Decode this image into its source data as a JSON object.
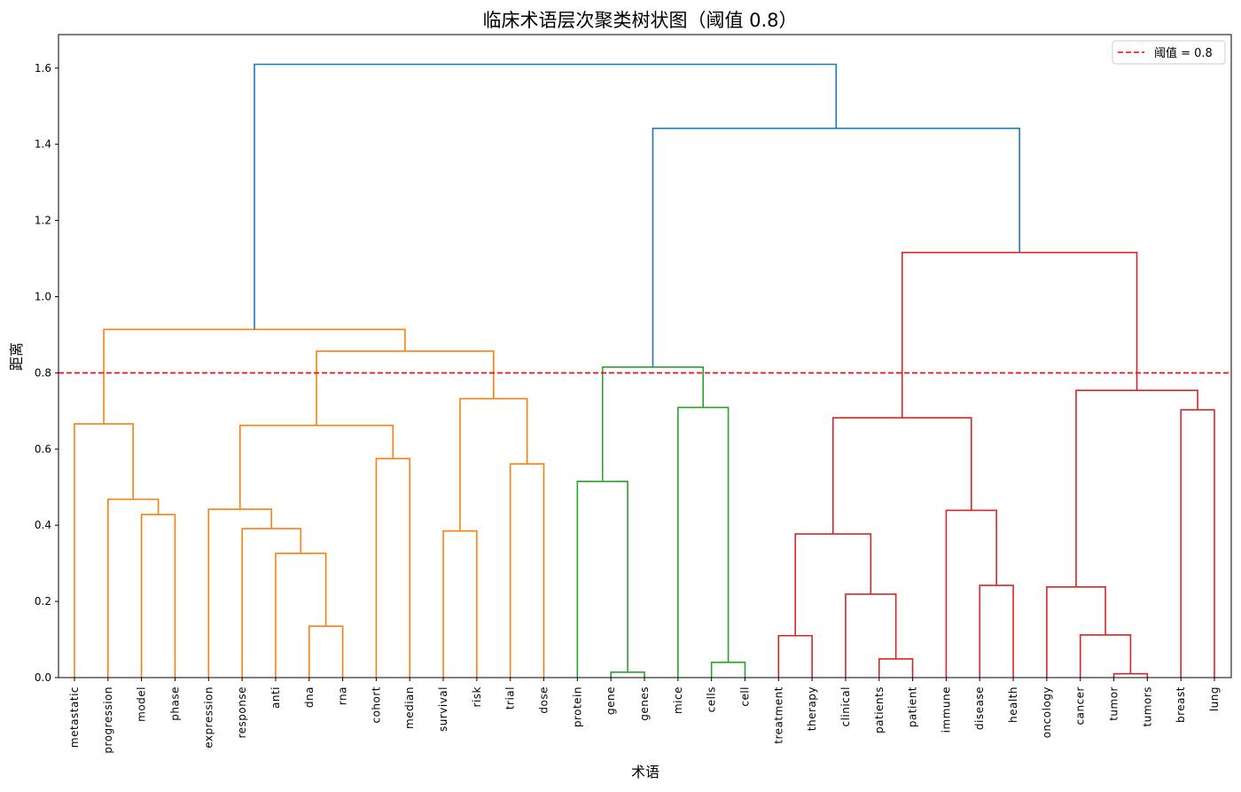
{
  "chart_data": {
    "type": "dendrogram",
    "title": "临床术语层次聚类树状图（阈值 0.8）",
    "xlabel": "术语",
    "ylabel": "距离",
    "ylim": [
      0,
      1.688
    ],
    "yticks": [
      "0.0",
      "0.2",
      "0.4",
      "0.6",
      "0.8",
      "1.0",
      "1.2",
      "1.4",
      "1.6"
    ],
    "threshold": 0.8,
    "legend": {
      "label": "阈值 = 0.8",
      "position": "top-right"
    },
    "colors": {
      "o": "#ff7f0e",
      "g": "#2ca02c",
      "r": "#d62728",
      "b": "#1f77b4",
      "threshold": "#ff0000"
    },
    "leaves": [
      "metastatic",
      "progression",
      "model",
      "phase",
      "expression",
      "response",
      "anti",
      "dna",
      "rna",
      "cohort",
      "median",
      "survival",
      "risk",
      "trial",
      "dose",
      "protein",
      "gene",
      "genes",
      "mice",
      "cells",
      "cell",
      "treatment",
      "therapy",
      "clinical",
      "patients",
      "patient",
      "immune",
      "disease",
      "health",
      "oncology",
      "cancer",
      "tumor",
      "tumors",
      "breast",
      "lung"
    ],
    "merges": [
      [
        2,
        3,
        0.428,
        "o"
      ],
      [
        1,
        35,
        0.468,
        "o"
      ],
      [
        0,
        36,
        0.666,
        "o"
      ],
      [
        7,
        8,
        0.135,
        "o"
      ],
      [
        6,
        38,
        0.326,
        "o"
      ],
      [
        5,
        39,
        0.391,
        "o"
      ],
      [
        4,
        40,
        0.442,
        "o"
      ],
      [
        9,
        10,
        0.575,
        "o"
      ],
      [
        41,
        42,
        0.662,
        "o"
      ],
      [
        11,
        12,
        0.385,
        "o"
      ],
      [
        13,
        14,
        0.561,
        "o"
      ],
      [
        44,
        45,
        0.732,
        "o"
      ],
      [
        43,
        46,
        0.857,
        "o"
      ],
      [
        37,
        47,
        0.914,
        "o"
      ],
      [
        16,
        17,
        0.014,
        "g"
      ],
      [
        15,
        49,
        0.515,
        "g"
      ],
      [
        19,
        20,
        0.04,
        "g"
      ],
      [
        18,
        51,
        0.709,
        "g"
      ],
      [
        50,
        52,
        0.815,
        "g"
      ],
      [
        21,
        22,
        0.11,
        "r"
      ],
      [
        24,
        25,
        0.049,
        "r"
      ],
      [
        23,
        55,
        0.219,
        "r"
      ],
      [
        54,
        56,
        0.377,
        "r"
      ],
      [
        27,
        28,
        0.242,
        "r"
      ],
      [
        26,
        58,
        0.439,
        "r"
      ],
      [
        57,
        59,
        0.682,
        "r"
      ],
      [
        31,
        32,
        0.01,
        "r"
      ],
      [
        30,
        61,
        0.112,
        "r"
      ],
      [
        29,
        62,
        0.238,
        "r"
      ],
      [
        33,
        34,
        0.703,
        "r"
      ],
      [
        63,
        64,
        0.754,
        "r"
      ],
      [
        60,
        65,
        1.116,
        "r"
      ],
      [
        53,
        66,
        1.442,
        "b"
      ],
      [
        48,
        67,
        1.61,
        "b"
      ]
    ]
  }
}
